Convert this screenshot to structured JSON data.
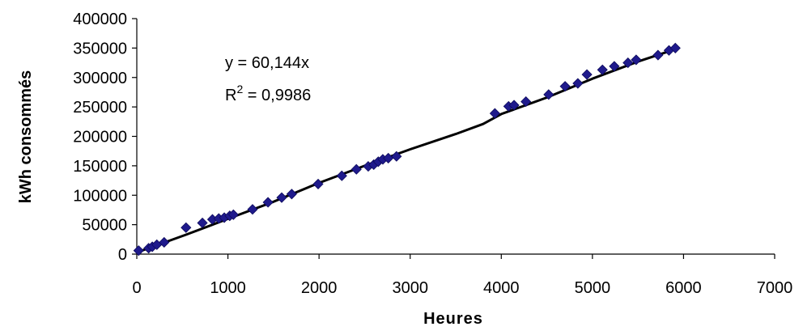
{
  "chart_data": {
    "type": "scatter",
    "xlabel": "Heures",
    "ylabel": "kWh consommés",
    "xlim": [
      0,
      7000
    ],
    "ylim": [
      0,
      400000
    ],
    "xticks": [
      "0",
      "1000",
      "2000",
      "3000",
      "4000",
      "5000",
      "6000",
      "7000"
    ],
    "yticks": [
      "0",
      "50000",
      "100000",
      "150000",
      "200000",
      "250000",
      "300000",
      "350000",
      "400000"
    ],
    "grid": false,
    "legend": "none",
    "marker_color": "#1F1A8C",
    "line_color": "#000000",
    "annotation": {
      "equation": "y = 60,144x",
      "r2_prefix": "R",
      "r2_sup": "2",
      "r2_value": " = 0,9986"
    },
    "points": [
      {
        "x": 20,
        "y": 6000
      },
      {
        "x": 130,
        "y": 10000
      },
      {
        "x": 170,
        "y": 12500
      },
      {
        "x": 220,
        "y": 16000
      },
      {
        "x": 300,
        "y": 20000
      },
      {
        "x": 540,
        "y": 45000
      },
      {
        "x": 720,
        "y": 53000
      },
      {
        "x": 830,
        "y": 59000
      },
      {
        "x": 900,
        "y": 60500
      },
      {
        "x": 960,
        "y": 62000
      },
      {
        "x": 1020,
        "y": 65000
      },
      {
        "x": 1060,
        "y": 67000
      },
      {
        "x": 1270,
        "y": 76000
      },
      {
        "x": 1440,
        "y": 88000
      },
      {
        "x": 1590,
        "y": 96000
      },
      {
        "x": 1700,
        "y": 102000
      },
      {
        "x": 1990,
        "y": 119000
      },
      {
        "x": 2250,
        "y": 133000
      },
      {
        "x": 2410,
        "y": 144000
      },
      {
        "x": 2540,
        "y": 149000
      },
      {
        "x": 2600,
        "y": 152000
      },
      {
        "x": 2650,
        "y": 157000
      },
      {
        "x": 2700,
        "y": 161000
      },
      {
        "x": 2760,
        "y": 163000
      },
      {
        "x": 2850,
        "y": 166000
      },
      {
        "x": 3930,
        "y": 239000
      },
      {
        "x": 4080,
        "y": 251000
      },
      {
        "x": 4140,
        "y": 253000
      },
      {
        "x": 4270,
        "y": 259000
      },
      {
        "x": 4520,
        "y": 271000
      },
      {
        "x": 4700,
        "y": 285000
      },
      {
        "x": 4840,
        "y": 290000
      },
      {
        "x": 4940,
        "y": 305000
      },
      {
        "x": 5110,
        "y": 313000
      },
      {
        "x": 5240,
        "y": 319000
      },
      {
        "x": 5390,
        "y": 325000
      },
      {
        "x": 5480,
        "y": 330000
      },
      {
        "x": 5720,
        "y": 338000
      },
      {
        "x": 5840,
        "y": 346000
      },
      {
        "x": 5910,
        "y": 350000
      }
    ],
    "trendline": [
      [
        20,
        4000
      ],
      [
        540,
        33000
      ],
      [
        1000,
        60000
      ],
      [
        1500,
        89000
      ],
      [
        2000,
        121000
      ],
      [
        2500,
        150000
      ],
      [
        3000,
        178000
      ],
      [
        3500,
        204000
      ],
      [
        3800,
        221000
      ],
      [
        4000,
        238000
      ],
      [
        4500,
        266000
      ],
      [
        5000,
        298000
      ],
      [
        5500,
        327000
      ],
      [
        5910,
        348000
      ]
    ]
  }
}
